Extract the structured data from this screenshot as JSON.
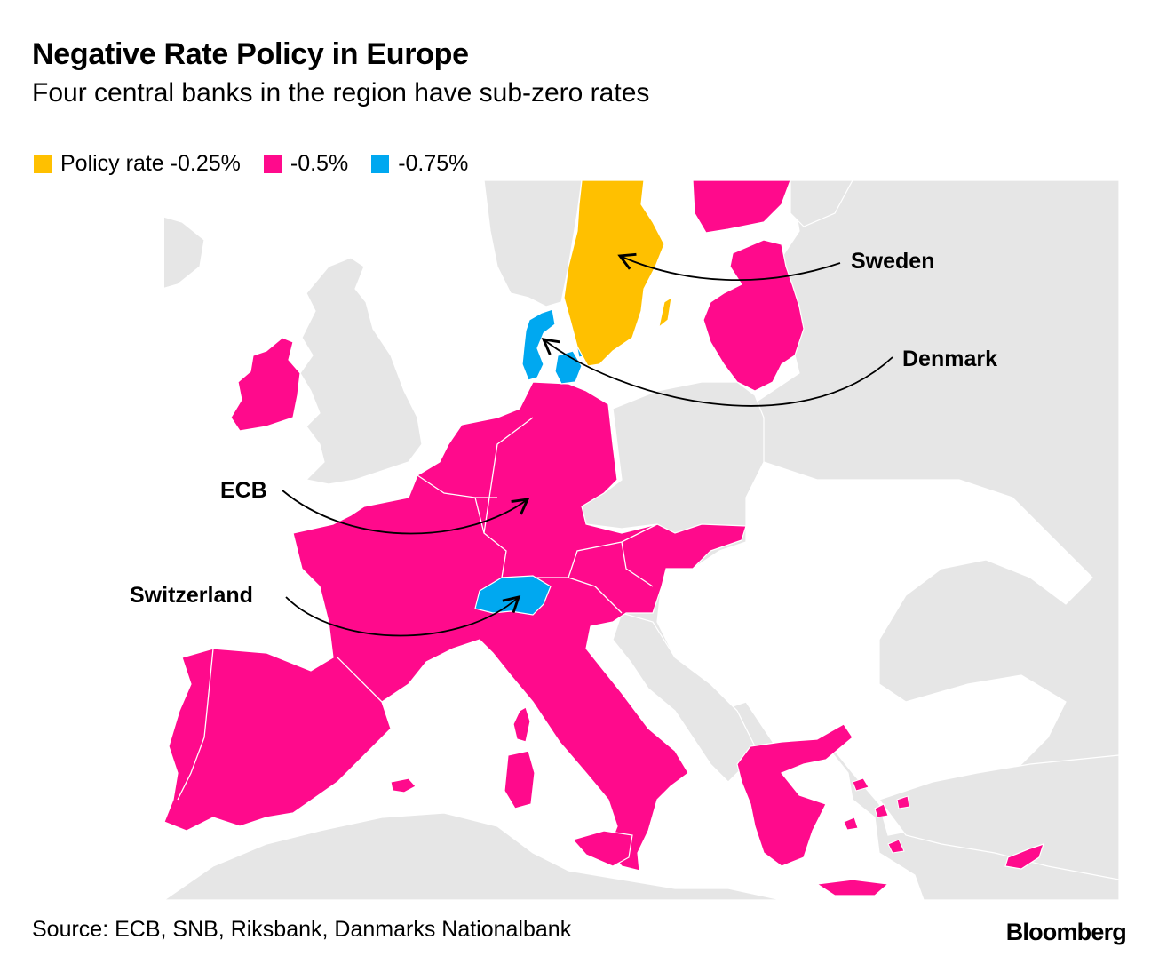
{
  "header": {
    "title": "Negative Rate Policy in Europe",
    "subtitle": "Four central banks in the region have sub-zero rates"
  },
  "legend": {
    "items": [
      {
        "label": "Policy rate -0.25%",
        "color": "#FFC000"
      },
      {
        "label": "-0.5%",
        "color": "#FF0A8C"
      },
      {
        "label": "-0.75%",
        "color": "#00A8F0"
      }
    ]
  },
  "colors": {
    "land": "#E6E6E6",
    "water": "#FFFFFF",
    "border": "#FFFFFF",
    "arrow": "#000000"
  },
  "callouts": {
    "sweden": "Sweden",
    "denmark": "Denmark",
    "ecb": "ECB",
    "switzerland": "Switzerland"
  },
  "footer": {
    "source": "Source: ECB, SNB, Riksbank, Danmarks Nationalbank",
    "brand": "Bloomberg"
  }
}
